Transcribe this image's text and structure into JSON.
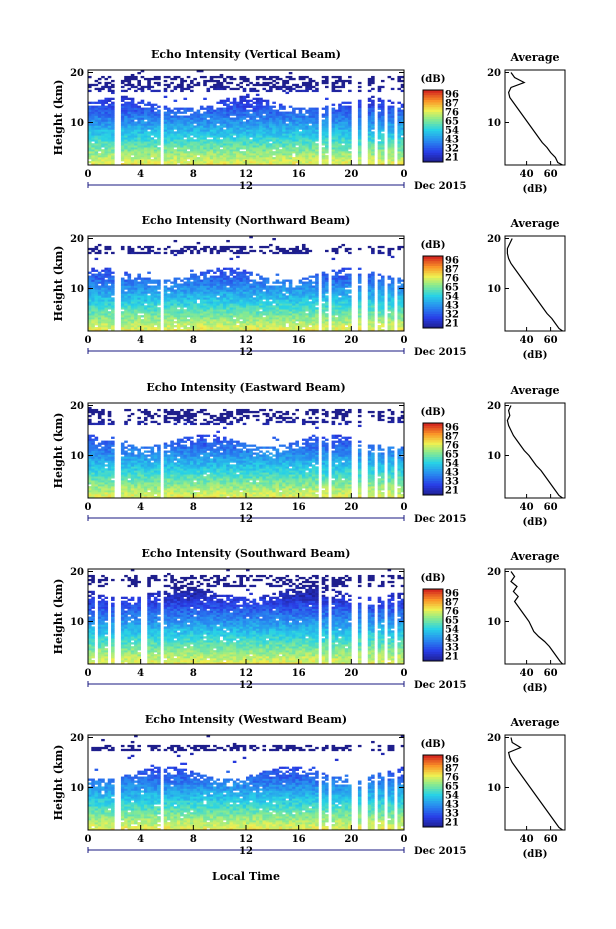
{
  "figure": {
    "xlabel_bottom": "Local Time",
    "date_label": "Dec 2015",
    "avg_title": "Average",
    "avg_xlabel": "(dB)",
    "cbar_label": "(dB)",
    "ylabel": "Height (km)"
  },
  "chart_data": [
    {
      "type": "heatmap",
      "title": "Echo Intensity (Vertical Beam)",
      "ylabel": "Height (km)",
      "x_ticks": [
        "0",
        "4",
        "8",
        "12",
        "16",
        "20",
        "0"
      ],
      "x_range": [
        0,
        24
      ],
      "date_ticks": [
        "12"
      ],
      "y_ticks": [
        10,
        20
      ],
      "y_range": [
        1.5,
        20.5
      ],
      "colorbar_ticks": [
        96,
        87,
        76,
        65,
        54,
        43,
        32,
        21
      ],
      "colorbar_range": [
        21,
        96
      ],
      "gap_hours": [
        2.2,
        5.6,
        17.6,
        18.4,
        20.2,
        21.0,
        21.9,
        22.6,
        23.4
      ],
      "cloud_top_km": 14,
      "upper_layer_km": [
        16,
        19.5
      ],
      "average_profile": {
        "title": "Average",
        "xlabel": "(dB)",
        "x_ticks": [
          40,
          60
        ],
        "y_ticks": [
          10,
          20
        ],
        "height_km": [
          1.5,
          2,
          3,
          4,
          5,
          6,
          7,
          8,
          9,
          10,
          11,
          12,
          13,
          14,
          15,
          16,
          17,
          18,
          19,
          20
        ],
        "intensity_db": [
          70,
          66,
          64,
          60,
          57,
          53,
          50,
          47,
          44,
          41,
          38,
          35,
          32,
          29,
          26,
          25,
          27,
          38,
          30,
          27
        ]
      }
    },
    {
      "type": "heatmap",
      "title": "Echo Intensity (Northward Beam)",
      "ylabel": "Height (km)",
      "x_ticks": [
        "0",
        "4",
        "8",
        "12",
        "16",
        "20",
        "0"
      ],
      "x_range": [
        0,
        24
      ],
      "date_ticks": [
        "12"
      ],
      "y_ticks": [
        10,
        20
      ],
      "y_range": [
        1.5,
        20.5
      ],
      "colorbar_ticks": [
        96,
        87,
        76,
        65,
        54,
        43,
        32,
        21
      ],
      "colorbar_range": [
        21,
        96
      ],
      "gap_hours": [
        2.2,
        5.6,
        17.6,
        18.4,
        20.2,
        21.0,
        21.9,
        22.6,
        23.4
      ],
      "cloud_top_km": 13,
      "upper_layer_km": [
        17,
        18.5
      ],
      "average_profile": {
        "title": "Average",
        "xlabel": "(dB)",
        "x_ticks": [
          40,
          60
        ],
        "y_ticks": [
          10,
          20
        ],
        "height_km": [
          1.5,
          2,
          3,
          4,
          5,
          6,
          7,
          8,
          9,
          10,
          11,
          12,
          13,
          14,
          15,
          16,
          17,
          18,
          19,
          20
        ],
        "intensity_db": [
          70,
          67,
          64,
          61,
          57,
          54,
          51,
          48,
          45,
          42,
          39,
          36,
          33,
          30,
          27,
          25,
          24,
          24,
          26,
          28
        ]
      }
    },
    {
      "type": "heatmap",
      "title": "Echo Intensity (Eastward Beam)",
      "ylabel": "Height (km)",
      "x_ticks": [
        "0",
        "4",
        "8",
        "12",
        "16",
        "20",
        "0"
      ],
      "x_range": [
        0,
        24
      ],
      "date_ticks": [
        "12"
      ],
      "y_ticks": [
        10,
        20
      ],
      "y_range": [
        1.5,
        20.5
      ],
      "colorbar_ticks": [
        96,
        87,
        76,
        65,
        54,
        43,
        33,
        21
      ],
      "colorbar_range": [
        21,
        96
      ],
      "gap_hours": [
        2.2,
        5.6,
        17.6,
        18.4,
        20.2,
        21.0,
        21.9,
        22.6,
        23.4
      ],
      "cloud_top_km": 13,
      "upper_layer_km": [
        16,
        19.5
      ],
      "average_profile": {
        "title": "Average",
        "xlabel": "(dB)",
        "x_ticks": [
          40,
          60
        ],
        "y_ticks": [
          10,
          20
        ],
        "height_km": [
          1.5,
          2,
          3,
          4,
          5,
          6,
          7,
          8,
          9,
          10,
          11,
          12,
          13,
          14,
          15,
          16,
          17,
          18,
          19,
          20
        ],
        "intensity_db": [
          70,
          67,
          64,
          61,
          58,
          55,
          52,
          48,
          45,
          42,
          38,
          35,
          32,
          29,
          27,
          25,
          24,
          26,
          25,
          27
        ]
      }
    },
    {
      "type": "heatmap",
      "title": "Echo Intensity (Southward Beam)",
      "ylabel": "Height (km)",
      "x_ticks": [
        "0",
        "4",
        "8",
        "12",
        "16",
        "20",
        "0"
      ],
      "x_range": [
        0,
        24
      ],
      "date_ticks": [
        "12"
      ],
      "y_ticks": [
        10,
        20
      ],
      "y_range": [
        1.5,
        20.5
      ],
      "colorbar_ticks": [
        96,
        87,
        76,
        65,
        54,
        43,
        33,
        21
      ],
      "colorbar_range": [
        21,
        96
      ],
      "gap_hours": [
        0.6,
        1.6,
        2.2,
        4.3,
        5.6,
        17.6,
        18.4,
        20.2,
        21.0,
        21.9,
        22.6,
        23.4
      ],
      "cloud_top_km": 16,
      "upper_layer_km": [
        17,
        19.5
      ],
      "average_profile": {
        "title": "Average",
        "xlabel": "(dB)",
        "x_ticks": [
          40,
          60
        ],
        "y_ticks": [
          10,
          20
        ],
        "height_km": [
          1.5,
          2,
          3,
          4,
          5,
          6,
          7,
          8,
          9,
          10,
          11,
          12,
          13,
          14,
          15,
          16,
          17,
          18,
          19,
          20
        ],
        "intensity_db": [
          70,
          68,
          65,
          62,
          59,
          55,
          50,
          46,
          44,
          42,
          39,
          36,
          33,
          30,
          33,
          29,
          32,
          27,
          30,
          27
        ]
      }
    },
    {
      "type": "heatmap",
      "title": "Echo Intensity (Westward Beam)",
      "ylabel": "Height (km)",
      "x_ticks": [
        "0",
        "4",
        "8",
        "12",
        "16",
        "20",
        "0"
      ],
      "x_range": [
        0,
        24
      ],
      "date_ticks": [
        "12"
      ],
      "y_ticks": [
        10,
        20
      ],
      "y_range": [
        1.5,
        20.5
      ],
      "colorbar_ticks": [
        96,
        87,
        76,
        65,
        54,
        43,
        33,
        21
      ],
      "colorbar_range": [
        21,
        96
      ],
      "gap_hours": [
        2.2,
        5.6,
        17.6,
        18.4,
        20.2,
        21.0,
        21.9,
        22.6,
        23.4
      ],
      "cloud_top_km": 13,
      "upper_layer_km": [
        17.5,
        18.5
      ],
      "average_profile": {
        "title": "Average",
        "xlabel": "(dB)",
        "x_ticks": [
          40,
          60
        ],
        "y_ticks": [
          10,
          20
        ],
        "height_km": [
          1.5,
          2,
          3,
          4,
          5,
          6,
          7,
          8,
          9,
          10,
          11,
          12,
          13,
          14,
          15,
          16,
          17,
          18,
          19,
          20
        ],
        "intensity_db": [
          70,
          67,
          64,
          61,
          58,
          55,
          52,
          49,
          46,
          43,
          40,
          37,
          34,
          31,
          28,
          26,
          25,
          35,
          28,
          27
        ]
      }
    }
  ]
}
